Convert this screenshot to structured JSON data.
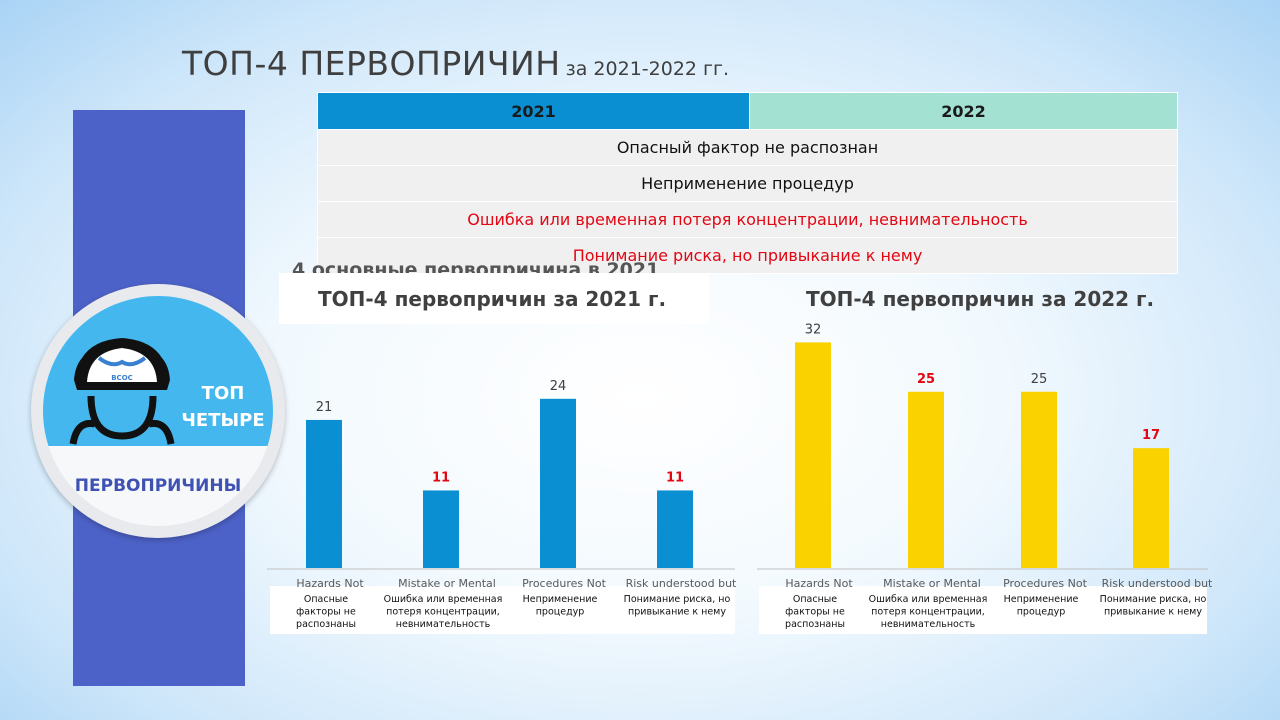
{
  "slide": {
    "title_main": "ТОП-4 ПЕРВОПРИЧИН",
    "title_sub": "за 2021-2022 гг.",
    "badge_top_line1": "ТОП",
    "badge_top_line2": "ЧЕТЫРЕ",
    "badge_bottom": "ПЕРВОПРИЧИНЫ",
    "logo_text": "ВСОС",
    "bleed_text": "4 основные первопричина в 2021"
  },
  "table": {
    "headers": [
      "2021",
      "2022"
    ],
    "rows": [
      {
        "text": "Опасный фактор не распознан",
        "highlight": false
      },
      {
        "text": "Неприменение процедур",
        "highlight": false
      },
      {
        "text": "Ошибка или временная потеря концентрации, невнимательность",
        "highlight": true
      },
      {
        "text": "Понимание риска, но привыкание к нему",
        "highlight": true
      }
    ]
  },
  "colors": {
    "bar_2021": "#0a8fd2",
    "bar_2022": "#fad200",
    "highlight_red": "#e30613",
    "header_2021": "#0a8fd2",
    "header_2022": "#a3e2d2"
  },
  "chart_data": [
    {
      "type": "bar",
      "title": "ТОП-4 первопричин за 2021 г.",
      "categories": [
        "Hazards Not",
        "Mistake or Mental",
        "Procedures Not",
        "Risk understood but"
      ],
      "category_labels_ru": [
        [
          "Опасные",
          "факторы не",
          "распознаны"
        ],
        [
          "Ошибка или временная",
          "потеря концентрации,",
          "невнимательность"
        ],
        [
          "Неприменение",
          "процедур"
        ],
        [
          "Понимание риска, но",
          "привыкание к нему"
        ]
      ],
      "values": [
        21,
        11,
        24,
        11
      ],
      "highlight": [
        false,
        true,
        false,
        true
      ],
      "ylim": [
        0,
        32
      ]
    },
    {
      "type": "bar",
      "title": "ТОП-4 первопричин за 2022 г.",
      "categories": [
        "Hazards Not",
        "Mistake or Mental",
        "Procedures Not",
        "Risk understood but"
      ],
      "category_labels_ru": [
        [
          "Опасные",
          "факторы не",
          "распознаны"
        ],
        [
          "Ошибка или временная",
          "потеря концентрации,",
          "невнимательность"
        ],
        [
          "Неприменение",
          "процедур"
        ],
        [
          "Понимание риска, но",
          "привыкание к нему"
        ]
      ],
      "values": [
        32,
        25,
        25,
        17
      ],
      "highlight": [
        false,
        true,
        false,
        true
      ],
      "ylim": [
        0,
        32
      ]
    }
  ]
}
